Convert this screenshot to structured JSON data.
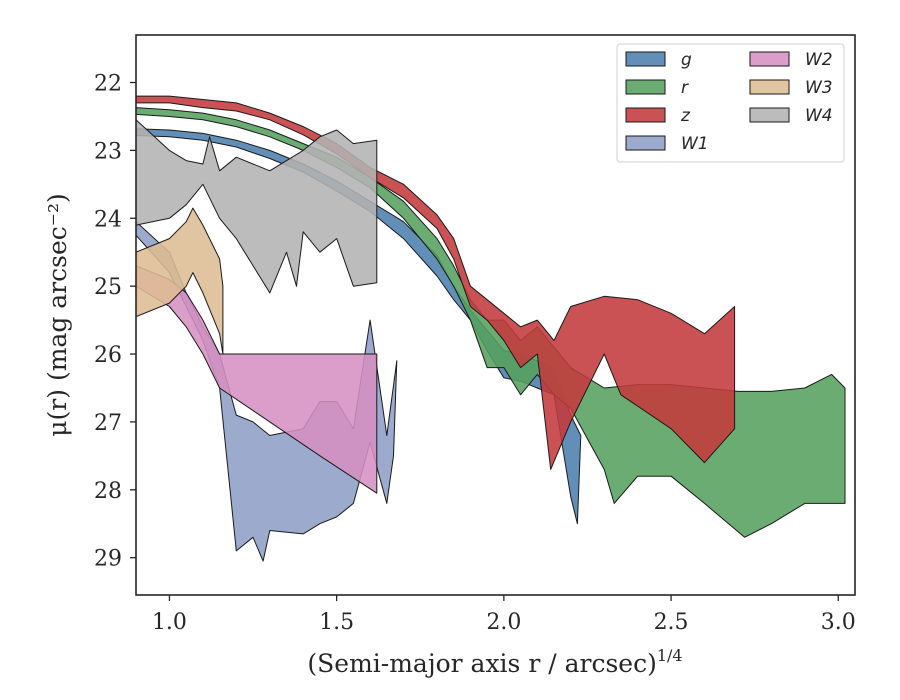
{
  "chart_data": {
    "type": "area",
    "xlabel": "(Semi-major axis r / arcsec)",
    "xlabel_sup": "1/4",
    "ylabel": "μ(r) (mag arcsec⁻²)",
    "x_range": [
      0.9,
      3.05
    ],
    "y_range": [
      21.3,
      29.55
    ],
    "y_inverted": true,
    "x_ticks": [
      1.0,
      1.5,
      2.0,
      2.5,
      3.0
    ],
    "x_tick_labels": [
      "1.0",
      "1.5",
      "2.0",
      "2.5",
      "3.0"
    ],
    "y_ticks": [
      22,
      23,
      24,
      25,
      26,
      27,
      28,
      29
    ],
    "y_tick_labels": [
      "22",
      "23",
      "24",
      "25",
      "26",
      "27",
      "28",
      "29"
    ],
    "grid": false,
    "legend_position": "top-right",
    "legend_columns": 2,
    "series": [
      {
        "name": "g",
        "color": "#4c7fad",
        "upper": [
          [
            0.9,
            22.68
          ],
          [
            1.0,
            22.7
          ],
          [
            1.1,
            22.75
          ],
          [
            1.2,
            22.85
          ],
          [
            1.3,
            23.0
          ],
          [
            1.4,
            23.2
          ],
          [
            1.5,
            23.45
          ],
          [
            1.6,
            23.75
          ],
          [
            1.7,
            24.05
          ],
          [
            1.8,
            24.55
          ],
          [
            1.85,
            25.0
          ],
          [
            1.9,
            25.35
          ],
          [
            1.95,
            25.65
          ],
          [
            2.0,
            25.95
          ],
          [
            2.05,
            26.0
          ],
          [
            2.1,
            26.1
          ],
          [
            2.15,
            26.2
          ],
          [
            2.2,
            26.9
          ],
          [
            2.23,
            27.2
          ]
        ],
        "lower": [
          [
            0.9,
            22.78
          ],
          [
            1.0,
            22.8
          ],
          [
            1.1,
            22.85
          ],
          [
            1.2,
            22.95
          ],
          [
            1.3,
            23.12
          ],
          [
            1.4,
            23.32
          ],
          [
            1.5,
            23.6
          ],
          [
            1.6,
            23.9
          ],
          [
            1.7,
            24.3
          ],
          [
            1.8,
            24.85
          ],
          [
            1.85,
            25.2
          ],
          [
            1.9,
            25.5
          ],
          [
            1.95,
            25.95
          ],
          [
            2.0,
            26.35
          ],
          [
            2.05,
            26.4
          ],
          [
            2.1,
            26.5
          ],
          [
            2.15,
            26.6
          ],
          [
            2.2,
            28.1
          ],
          [
            2.22,
            28.5
          ]
        ]
      },
      {
        "name": "r",
        "color": "#55a15e",
        "upper": [
          [
            0.9,
            22.37
          ],
          [
            1.0,
            22.4
          ],
          [
            1.1,
            22.45
          ],
          [
            1.2,
            22.55
          ],
          [
            1.3,
            22.7
          ],
          [
            1.4,
            22.9
          ],
          [
            1.5,
            23.1
          ],
          [
            1.6,
            23.4
          ],
          [
            1.7,
            23.75
          ],
          [
            1.8,
            24.3
          ],
          [
            1.85,
            24.7
          ],
          [
            1.9,
            25.2
          ],
          [
            1.95,
            25.5
          ],
          [
            2.0,
            25.5
          ],
          [
            2.05,
            25.8
          ],
          [
            2.1,
            25.6
          ],
          [
            2.15,
            25.9
          ],
          [
            2.2,
            26.2
          ],
          [
            2.3,
            26.5
          ],
          [
            2.4,
            26.45
          ],
          [
            2.5,
            26.45
          ],
          [
            2.6,
            26.5
          ],
          [
            2.7,
            26.55
          ],
          [
            2.8,
            26.55
          ],
          [
            2.9,
            26.5
          ],
          [
            2.98,
            26.3
          ],
          [
            3.02,
            26.5
          ]
        ],
        "lower": [
          [
            0.9,
            22.47
          ],
          [
            1.0,
            22.5
          ],
          [
            1.1,
            22.55
          ],
          [
            1.2,
            22.65
          ],
          [
            1.3,
            22.8
          ],
          [
            1.4,
            23.0
          ],
          [
            1.5,
            23.25
          ],
          [
            1.6,
            23.55
          ],
          [
            1.7,
            24.0
          ],
          [
            1.8,
            24.6
          ],
          [
            1.85,
            25.0
          ],
          [
            1.9,
            25.5
          ],
          [
            1.95,
            26.2
          ],
          [
            2.0,
            26.2
          ],
          [
            2.05,
            26.6
          ],
          [
            2.1,
            26.3
          ],
          [
            2.15,
            26.6
          ],
          [
            2.2,
            26.8
          ],
          [
            2.3,
            27.7
          ],
          [
            2.33,
            28.2
          ],
          [
            2.4,
            27.8
          ],
          [
            2.5,
            27.8
          ],
          [
            2.6,
            28.2
          ],
          [
            2.72,
            28.7
          ],
          [
            2.8,
            28.5
          ],
          [
            2.9,
            28.2
          ],
          [
            3.02,
            28.2
          ]
        ]
      },
      {
        "name": "z",
        "color": "#c43a3c",
        "upper": [
          [
            0.9,
            22.2
          ],
          [
            1.0,
            22.2
          ],
          [
            1.1,
            22.25
          ],
          [
            1.2,
            22.3
          ],
          [
            1.3,
            22.45
          ],
          [
            1.4,
            22.65
          ],
          [
            1.5,
            22.9
          ],
          [
            1.6,
            23.25
          ],
          [
            1.7,
            23.5
          ],
          [
            1.8,
            23.95
          ],
          [
            1.85,
            24.3
          ],
          [
            1.9,
            25.0
          ],
          [
            1.95,
            25.2
          ],
          [
            2.0,
            25.4
          ],
          [
            2.05,
            25.6
          ],
          [
            2.1,
            25.5
          ],
          [
            2.15,
            25.8
          ],
          [
            2.2,
            25.3
          ],
          [
            2.3,
            25.15
          ],
          [
            2.4,
            25.2
          ],
          [
            2.5,
            25.4
          ],
          [
            2.6,
            25.7
          ],
          [
            2.69,
            25.3
          ]
        ],
        "lower": [
          [
            0.9,
            22.3
          ],
          [
            1.0,
            22.3
          ],
          [
            1.1,
            22.37
          ],
          [
            1.2,
            22.42
          ],
          [
            1.3,
            22.55
          ],
          [
            1.4,
            22.77
          ],
          [
            1.5,
            23.05
          ],
          [
            1.6,
            23.4
          ],
          [
            1.7,
            23.7
          ],
          [
            1.8,
            24.15
          ],
          [
            1.85,
            24.6
          ],
          [
            1.9,
            25.3
          ],
          [
            1.95,
            25.5
          ],
          [
            2.0,
            25.8
          ],
          [
            2.05,
            26.2
          ],
          [
            2.1,
            26.0
          ],
          [
            2.14,
            27.7
          ],
          [
            2.2,
            27.0
          ],
          [
            2.3,
            26.0
          ],
          [
            2.35,
            26.6
          ],
          [
            2.5,
            27.1
          ],
          [
            2.6,
            27.6
          ],
          [
            2.69,
            27.1
          ]
        ]
      },
      {
        "name": "W1",
        "color": "#8e9ec6",
        "upper": [
          [
            0.9,
            24.05
          ],
          [
            1.0,
            24.5
          ],
          [
            1.05,
            25.1
          ],
          [
            1.1,
            25.6
          ],
          [
            1.15,
            26.0
          ],
          [
            1.2,
            26.9
          ],
          [
            1.25,
            27.0
          ],
          [
            1.3,
            27.2
          ],
          [
            1.4,
            27.1
          ],
          [
            1.45,
            26.7
          ],
          [
            1.5,
            26.7
          ],
          [
            1.55,
            27.1
          ],
          [
            1.6,
            25.5
          ],
          [
            1.65,
            27.2
          ],
          [
            1.68,
            26.1
          ]
        ],
        "lower": [
          [
            0.9,
            24.25
          ],
          [
            1.0,
            24.8
          ],
          [
            1.05,
            25.3
          ],
          [
            1.1,
            25.8
          ],
          [
            1.15,
            26.5
          ],
          [
            1.2,
            28.9
          ],
          [
            1.25,
            28.7
          ],
          [
            1.28,
            29.05
          ],
          [
            1.3,
            28.6
          ],
          [
            1.4,
            28.65
          ],
          [
            1.45,
            28.5
          ],
          [
            1.5,
            28.4
          ],
          [
            1.55,
            28.2
          ],
          [
            1.6,
            27.3
          ],
          [
            1.65,
            28.2
          ],
          [
            1.67,
            27.5
          ]
        ]
      },
      {
        "name": "W2",
        "color": "#d68fc1",
        "upper": [
          [
            0.9,
            24.7
          ],
          [
            1.0,
            24.9
          ],
          [
            1.05,
            25.1
          ],
          [
            1.1,
            25.5
          ],
          [
            1.15,
            26.0
          ],
          [
            1.3,
            26.0
          ],
          [
            1.45,
            26.0
          ],
          [
            1.62,
            26.0
          ]
        ],
        "lower": [
          [
            0.9,
            25.0
          ],
          [
            1.0,
            25.3
          ],
          [
            1.05,
            25.6
          ],
          [
            1.1,
            26.0
          ],
          [
            1.15,
            26.5
          ],
          [
            1.3,
            27.0
          ],
          [
            1.45,
            27.5
          ],
          [
            1.62,
            28.05
          ]
        ]
      },
      {
        "name": "W3",
        "color": "#ddbc93",
        "upper": [
          [
            0.9,
            24.5
          ],
          [
            1.0,
            24.3
          ],
          [
            1.05,
            24.05
          ],
          [
            1.07,
            23.85
          ],
          [
            1.1,
            24.1
          ],
          [
            1.15,
            24.6
          ],
          [
            1.16,
            25.0
          ]
        ],
        "lower": [
          [
            0.9,
            25.45
          ],
          [
            1.0,
            25.25
          ],
          [
            1.05,
            25.0
          ],
          [
            1.07,
            24.8
          ],
          [
            1.1,
            25.1
          ],
          [
            1.15,
            25.7
          ],
          [
            1.16,
            26.0
          ]
        ]
      },
      {
        "name": "W4",
        "color": "#b3b3b3",
        "upper": [
          [
            0.9,
            22.55
          ],
          [
            1.0,
            23.0
          ],
          [
            1.05,
            23.15
          ],
          [
            1.1,
            23.2
          ],
          [
            1.12,
            22.8
          ],
          [
            1.15,
            23.3
          ],
          [
            1.2,
            23.1
          ],
          [
            1.3,
            23.3
          ],
          [
            1.4,
            23.0
          ],
          [
            1.45,
            22.8
          ],
          [
            1.5,
            22.7
          ],
          [
            1.55,
            22.9
          ],
          [
            1.62,
            22.85
          ]
        ],
        "lower": [
          [
            0.9,
            24.1
          ],
          [
            1.0,
            24.0
          ],
          [
            1.05,
            23.8
          ],
          [
            1.1,
            23.5
          ],
          [
            1.15,
            24.0
          ],
          [
            1.2,
            24.3
          ],
          [
            1.3,
            25.1
          ],
          [
            1.35,
            24.5
          ],
          [
            1.38,
            25.0
          ],
          [
            1.4,
            24.2
          ],
          [
            1.45,
            24.5
          ],
          [
            1.5,
            24.3
          ],
          [
            1.55,
            25.0
          ],
          [
            1.62,
            24.95
          ]
        ]
      }
    ]
  }
}
